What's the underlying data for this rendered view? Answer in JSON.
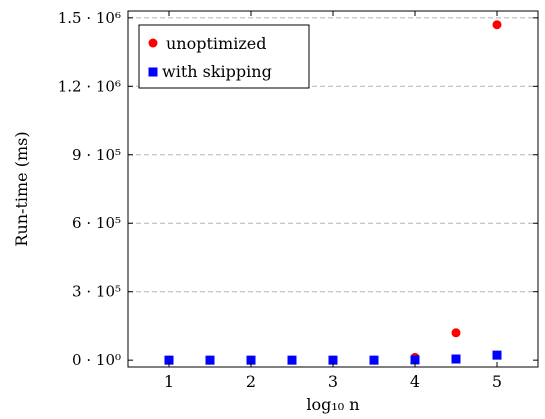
{
  "chart_data": {
    "type": "scatter",
    "xlabel": "log₁₀ n",
    "ylabel": "Run-time (ms)",
    "xlim": [
      0.5,
      5.5
    ],
    "ylim": [
      -30000,
      1530000
    ],
    "x_ticks": [
      1,
      2,
      3,
      4,
      5
    ],
    "y_ticks": [
      {
        "value": 0,
        "label": "0 · 10⁰"
      },
      {
        "value": 300000,
        "label": "3 · 10⁵"
      },
      {
        "value": 600000,
        "label": "6 · 10⁵"
      },
      {
        "value": 900000,
        "label": "9 · 10⁵"
      },
      {
        "value": 1200000,
        "label": "1.2 · 10⁶"
      },
      {
        "value": 1500000,
        "label": "1.5 · 10⁶"
      }
    ],
    "grid": "horizontal dashed",
    "legend_position": "top-left",
    "series": [
      {
        "name": "unoptimized",
        "color": "#ff0000",
        "marker": "circle",
        "points": [
          {
            "x": 1,
            "y": 0
          },
          {
            "x": 1.5,
            "y": 0
          },
          {
            "x": 2,
            "y": 0
          },
          {
            "x": 2.5,
            "y": 0
          },
          {
            "x": 3,
            "y": 0
          },
          {
            "x": 3.5,
            "y": 0
          },
          {
            "x": 4,
            "y": 12000
          },
          {
            "x": 4.5,
            "y": 120000
          },
          {
            "x": 5,
            "y": 1470000
          }
        ]
      },
      {
        "name": "with skipping",
        "color": "#0000ff",
        "marker": "square",
        "points": [
          {
            "x": 1,
            "y": 0
          },
          {
            "x": 1.5,
            "y": 0
          },
          {
            "x": 2,
            "y": 0
          },
          {
            "x": 2.5,
            "y": 0
          },
          {
            "x": 3,
            "y": 0
          },
          {
            "x": 3.5,
            "y": 0
          },
          {
            "x": 4,
            "y": 1000
          },
          {
            "x": 4.5,
            "y": 5000
          },
          {
            "x": 5,
            "y": 22000
          }
        ]
      }
    ]
  }
}
